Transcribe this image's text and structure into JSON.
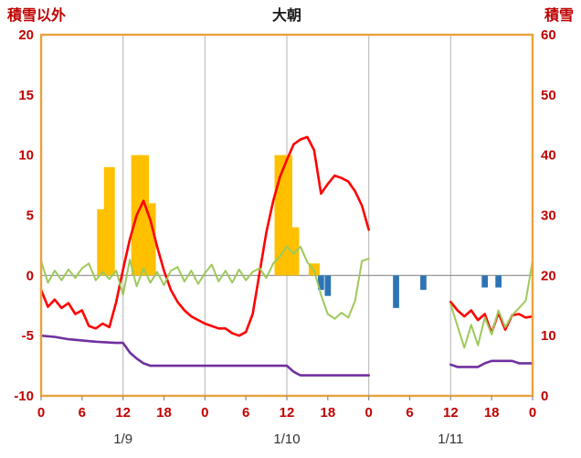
{
  "title": "大朝",
  "left_axis_label": "積雪以外",
  "right_axis_label": "積雪",
  "colors": {
    "axis_text": "#C00000",
    "title_text": "#1a1a1a",
    "date_text": "#333333",
    "plot_border": "#E8A33C",
    "gridline": "#BFBFBF",
    "zero_line": "#8C8C8C",
    "tick_mark": "#8C8C8C",
    "red_line": "#FF0000",
    "green_line": "#9DC95C",
    "purple_line": "#7030A0",
    "orange_bar": "#FFC000",
    "blue_bar": "#2E74B5"
  },
  "chart_data": {
    "type": "line",
    "title": "大朝",
    "left_ylabel": "積雪以外",
    "right_ylabel": "積雪",
    "x_unit": "hour",
    "x_range": [
      0,
      72
    ],
    "left_ylim": [
      -10,
      20
    ],
    "right_ylim": [
      0,
      60
    ],
    "grid": "vertical-only",
    "legend": "none",
    "left_ticks": [
      "20",
      "15",
      "10",
      "5",
      "0",
      "-5",
      "-10"
    ],
    "left_tick_values": [
      20,
      15,
      10,
      5,
      0,
      -5,
      -10
    ],
    "right_ticks": [
      "60",
      "50",
      "40",
      "30",
      "20",
      "10",
      "0"
    ],
    "right_tick_positions_on_left_scale": [
      20,
      15,
      10,
      5,
      0,
      -5,
      -10
    ],
    "x_tick_hours": [
      0,
      6,
      12,
      18,
      24,
      30,
      36,
      42,
      48,
      54,
      60,
      66,
      72
    ],
    "x_tick_labels": [
      "0",
      "6",
      "12",
      "18",
      "0",
      "6",
      "12",
      "18",
      "0",
      "6",
      "12",
      "18",
      "0"
    ],
    "date_labels": [
      {
        "hour": 12,
        "label": "1/9"
      },
      {
        "hour": 36,
        "label": "1/10"
      },
      {
        "hour": 60,
        "label": "1/11"
      }
    ],
    "vertical_gridline_hours": [
      12,
      24,
      36,
      48,
      60
    ],
    "series": [
      {
        "name": "red-line",
        "color_key": "red_line",
        "stroke_width": 2.6,
        "segments": [
          [
            [
              0,
              -1.2
            ],
            [
              1,
              -2.6
            ],
            [
              2,
              -2.0
            ],
            [
              3,
              -2.7
            ],
            [
              4,
              -2.3
            ],
            [
              5,
              -3.2
            ],
            [
              6,
              -2.9
            ],
            [
              7,
              -4.2
            ],
            [
              8,
              -4.4
            ],
            [
              9,
              -4.0
            ],
            [
              10,
              -4.3
            ],
            [
              11,
              -2.2
            ],
            [
              12,
              0.5
            ],
            [
              13,
              3.0
            ],
            [
              14,
              5.0
            ],
            [
              15,
              6.2
            ],
            [
              16,
              4.6
            ],
            [
              17,
              2.4
            ],
            [
              18,
              0.4
            ],
            [
              19,
              -1.2
            ],
            [
              20,
              -2.2
            ],
            [
              21,
              -2.9
            ],
            [
              22,
              -3.4
            ],
            [
              23,
              -3.7
            ],
            [
              24,
              -4.0
            ],
            [
              25,
              -4.2
            ],
            [
              26,
              -4.4
            ],
            [
              27,
              -4.4
            ],
            [
              28,
              -4.8
            ],
            [
              29,
              -5.0
            ],
            [
              30,
              -4.7
            ],
            [
              31,
              -3.2
            ],
            [
              32,
              0.2
            ],
            [
              33,
              3.6
            ],
            [
              34,
              6.2
            ],
            [
              35,
              8.2
            ],
            [
              36,
              9.6
            ],
            [
              37,
              10.9
            ],
            [
              38,
              11.3
            ],
            [
              39,
              11.5
            ],
            [
              40,
              10.4
            ],
            [
              41,
              6.8
            ],
            [
              42,
              7.6
            ],
            [
              43,
              8.3
            ],
            [
              44,
              8.1
            ],
            [
              45,
              7.8
            ],
            [
              46,
              7.0
            ],
            [
              47,
              5.8
            ],
            [
              48,
              3.8
            ]
          ],
          [
            [
              60,
              -2.2
            ],
            [
              61,
              -2.9
            ],
            [
              62,
              -3.4
            ],
            [
              63,
              -2.9
            ],
            [
              64,
              -3.7
            ],
            [
              65,
              -3.2
            ],
            [
              66,
              -4.8
            ],
            [
              67,
              -3.1
            ],
            [
              68,
              -4.5
            ],
            [
              69,
              -3.3
            ],
            [
              70,
              -3.2
            ],
            [
              71,
              -3.5
            ],
            [
              72,
              -3.4
            ]
          ]
        ]
      },
      {
        "name": "green-line",
        "color_key": "green_line",
        "stroke_width": 2,
        "segments": [
          [
            [
              0,
              1.2
            ],
            [
              1,
              -0.6
            ],
            [
              2,
              0.4
            ],
            [
              3,
              -0.4
            ],
            [
              4,
              0.5
            ],
            [
              5,
              -0.2
            ],
            [
              6,
              0.6
            ],
            [
              7,
              1.0
            ],
            [
              8,
              -0.4
            ],
            [
              9,
              0.3
            ],
            [
              10,
              -0.3
            ],
            [
              11,
              0.4
            ],
            [
              12,
              -1.6
            ],
            [
              13,
              1.3
            ],
            [
              14,
              -0.9
            ],
            [
              15,
              0.6
            ],
            [
              16,
              -0.6
            ],
            [
              17,
              0.3
            ],
            [
              18,
              -0.8
            ],
            [
              19,
              0.4
            ],
            [
              20,
              0.7
            ],
            [
              21,
              -0.5
            ],
            [
              22,
              0.4
            ],
            [
              23,
              -0.7
            ],
            [
              24,
              0.2
            ],
            [
              25,
              0.9
            ],
            [
              26,
              -0.5
            ],
            [
              27,
              0.4
            ],
            [
              28,
              -0.6
            ],
            [
              29,
              0.5
            ],
            [
              30,
              -0.4
            ],
            [
              31,
              0.3
            ],
            [
              32,
              0.6
            ],
            [
              33,
              -0.2
            ],
            [
              34,
              1.0
            ],
            [
              35,
              1.6
            ],
            [
              36,
              2.4
            ],
            [
              37,
              1.8
            ],
            [
              38,
              2.4
            ],
            [
              39,
              1.1
            ],
            [
              40,
              0.4
            ],
            [
              41,
              -1.6
            ],
            [
              42,
              -3.2
            ],
            [
              43,
              -3.6
            ],
            [
              44,
              -3.1
            ],
            [
              45,
              -3.5
            ],
            [
              46,
              -2.1
            ],
            [
              47,
              1.2
            ],
            [
              48,
              1.4
            ]
          ],
          [
            [
              60,
              -2.4
            ],
            [
              61,
              -4.2
            ],
            [
              62,
              -6.0
            ],
            [
              63,
              -4.1
            ],
            [
              64,
              -5.8
            ],
            [
              65,
              -3.5
            ],
            [
              66,
              -4.9
            ],
            [
              67,
              -2.9
            ],
            [
              68,
              -4.3
            ],
            [
              69,
              -3.3
            ],
            [
              70,
              -2.7
            ],
            [
              71,
              -2.1
            ],
            [
              72,
              1.2
            ]
          ]
        ]
      },
      {
        "name": "purple-line",
        "color_key": "purple_line",
        "stroke_width": 2.6,
        "segments": [
          [
            [
              0,
              -5.0
            ],
            [
              2,
              -5.1
            ],
            [
              4,
              -5.3
            ],
            [
              6,
              -5.4
            ],
            [
              8,
              -5.5
            ],
            [
              11,
              -5.6
            ],
            [
              12,
              -5.6
            ],
            [
              13,
              -6.4
            ],
            [
              14,
              -6.9
            ],
            [
              15,
              -7.3
            ],
            [
              16,
              -7.5
            ],
            [
              36,
              -7.5
            ],
            [
              37,
              -8.0
            ],
            [
              38,
              -8.3
            ],
            [
              48,
              -8.3
            ]
          ],
          [
            [
              60,
              -7.4
            ],
            [
              61,
              -7.6
            ],
            [
              64,
              -7.6
            ],
            [
              65,
              -7.3
            ],
            [
              66,
              -7.1
            ],
            [
              69,
              -7.1
            ],
            [
              70,
              -7.3
            ],
            [
              72,
              -7.3
            ]
          ]
        ]
      }
    ],
    "bars": [
      {
        "name": "orange-bars",
        "color_key": "orange_bar",
        "bar_width_hours": 1.6,
        "values": [
          [
            9,
            5.5
          ],
          [
            10,
            9
          ],
          [
            14,
            10
          ],
          [
            15,
            10
          ],
          [
            16,
            6
          ],
          [
            35,
            10
          ],
          [
            36,
            10
          ],
          [
            37,
            4
          ],
          [
            40,
            1
          ]
        ]
      },
      {
        "name": "blue-bars",
        "color_key": "blue_bar",
        "bar_width_hours": 0.9,
        "values": [
          [
            41,
            -1.2
          ],
          [
            42,
            -1.7
          ],
          [
            52,
            -2.7
          ],
          [
            56,
            -1.2
          ],
          [
            65,
            -1.0
          ],
          [
            67,
            -1.0
          ]
        ]
      }
    ]
  }
}
